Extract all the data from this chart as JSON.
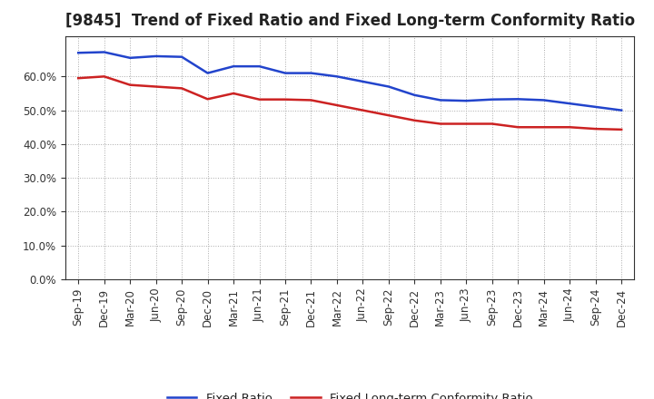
{
  "title": "[9845]  Trend of Fixed Ratio and Fixed Long-term Conformity Ratio",
  "x_labels": [
    "Sep-19",
    "Dec-19",
    "Mar-20",
    "Jun-20",
    "Sep-20",
    "Dec-20",
    "Mar-21",
    "Jun-21",
    "Sep-21",
    "Dec-21",
    "Mar-22",
    "Jun-22",
    "Sep-22",
    "Dec-22",
    "Mar-23",
    "Jun-23",
    "Sep-23",
    "Dec-23",
    "Mar-24",
    "Jun-24",
    "Sep-24",
    "Dec-24"
  ],
  "fixed_ratio": [
    0.67,
    0.672,
    0.655,
    0.66,
    0.658,
    0.61,
    0.63,
    0.63,
    0.61,
    0.61,
    0.6,
    0.585,
    0.57,
    0.545,
    0.53,
    0.528,
    0.532,
    0.533,
    0.53,
    0.52,
    0.51,
    0.5
  ],
  "fixed_lt_ratio": [
    0.595,
    0.6,
    0.575,
    0.57,
    0.565,
    0.533,
    0.55,
    0.532,
    0.532,
    0.53,
    0.515,
    0.5,
    0.485,
    0.47,
    0.46,
    0.46,
    0.46,
    0.45,
    0.45,
    0.45,
    0.445,
    0.443
  ],
  "fixed_ratio_color": "#2244cc",
  "fixed_lt_ratio_color": "#cc2222",
  "background_color": "#ffffff",
  "plot_bg_color": "#ffffff",
  "grid_color": "#aaaaaa",
  "ylim": [
    0.0,
    0.72
  ],
  "yticks": [
    0.0,
    0.1,
    0.2,
    0.3,
    0.4,
    0.5,
    0.6
  ],
  "legend_fixed_ratio": "Fixed Ratio",
  "legend_fixed_lt_ratio": "Fixed Long-term Conformity Ratio",
  "title_fontsize": 12,
  "tick_fontsize": 8.5,
  "legend_fontsize": 9.5,
  "line_width": 1.8
}
